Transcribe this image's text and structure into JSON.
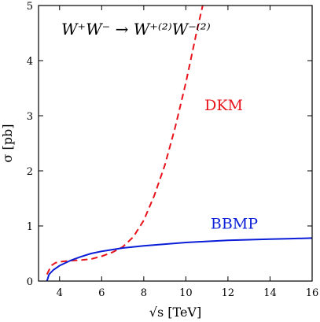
{
  "chart_data": {
    "type": "line",
    "title": "W⁺W⁻ → W⁺⁽²⁾W⁻⁽²⁾",
    "xlabel": "√s [TeV]",
    "ylabel": "σ [pb]",
    "xlim": [
      3,
      16
    ],
    "ylim": [
      0,
      5
    ],
    "xticks": [
      4,
      6,
      8,
      10,
      12,
      14,
      16
    ],
    "yticks": [
      0,
      1,
      2,
      3,
      4,
      5
    ],
    "grid": false,
    "series": [
      {
        "name": "DKM",
        "color": "#e8121b",
        "dash": "dashed",
        "x": [
          3.4,
          3.6,
          3.8,
          4.0,
          4.5,
          5.0,
          5.5,
          6.0,
          6.5,
          7.0,
          7.5,
          8.0,
          8.5,
          9.0,
          9.5,
          10.0,
          10.5,
          10.8
        ],
        "y": [
          0.12,
          0.28,
          0.33,
          0.35,
          0.37,
          0.38,
          0.4,
          0.45,
          0.52,
          0.62,
          0.8,
          1.1,
          1.55,
          2.1,
          2.8,
          3.6,
          4.5,
          5.0
        ]
      },
      {
        "name": "BBMP",
        "color": "#0a1ed8",
        "dash": "solid",
        "x": [
          3.4,
          3.5,
          3.7,
          4.0,
          4.5,
          5.0,
          5.5,
          6.0,
          7.0,
          8.0,
          9.0,
          10.0,
          11.0,
          12.0,
          13.0,
          14.0,
          15.0,
          16.0
        ],
        "y": [
          0.0,
          0.12,
          0.2,
          0.28,
          0.37,
          0.44,
          0.5,
          0.54,
          0.6,
          0.64,
          0.67,
          0.7,
          0.72,
          0.74,
          0.75,
          0.76,
          0.77,
          0.78
        ]
      }
    ],
    "annotations": [
      {
        "text": "DKM",
        "x": 11.8,
        "y": 3.1,
        "color": "#e8121b"
      },
      {
        "text": "BBMP",
        "x": 12.3,
        "y": 0.95,
        "color": "#0a1ed8"
      }
    ]
  }
}
